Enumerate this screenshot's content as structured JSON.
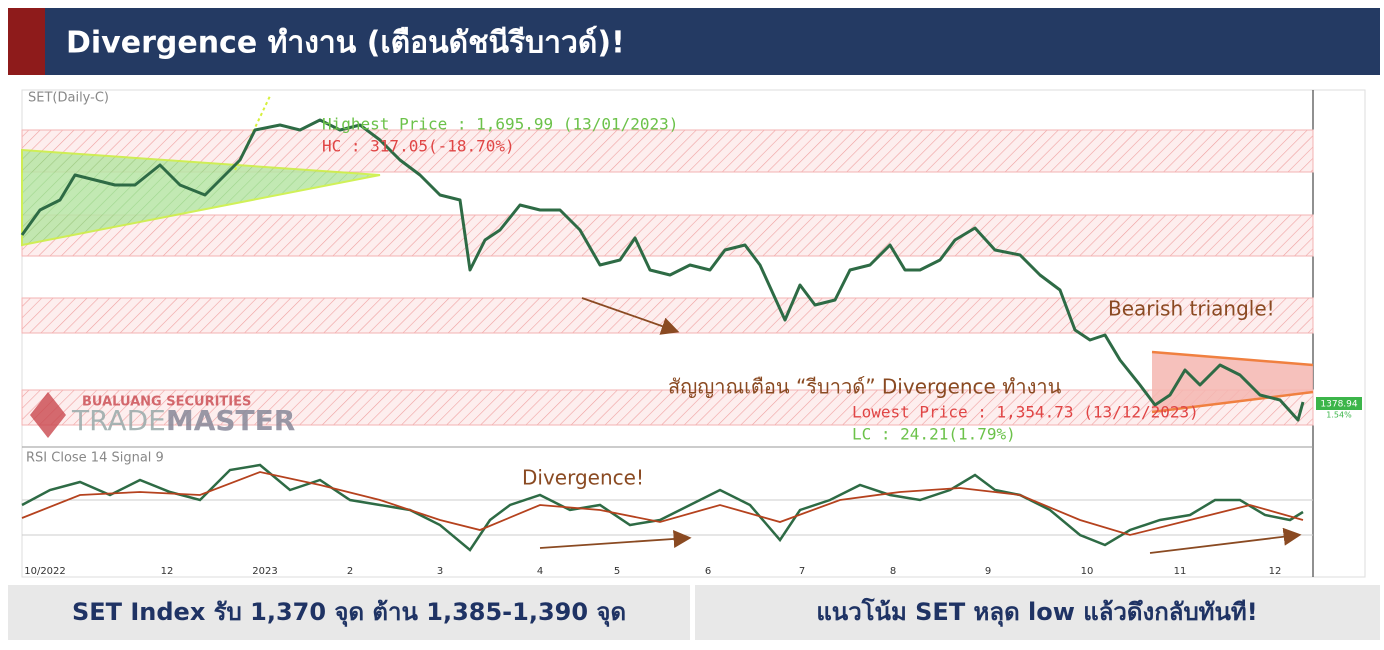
{
  "header": {
    "title": "Divergence ทำงาน (เตือนดัชนีรีบาวด์)!"
  },
  "chart": {
    "label": "SET(Daily-C)",
    "rsi_label": "RSI Close 14 Signal 9",
    "annotations": {
      "highest": "Highest Price : 1,695.99 (13/01/2023)",
      "hc": "HC : 317.05(-18.70%)",
      "bearish": "Bearish triangle!",
      "signal": "สัญญาณเตือน “รีบาวด์” Divergence ทำงาน",
      "lowest": "Lowest Price : 1,354.73 (13/12/2023)",
      "lc": "LC : 24.21(1.79%)",
      "divergence": "Divergence!"
    },
    "price_tag": "1378.94",
    "price_change": "1.54%",
    "x_labels": [
      "10/2022",
      "12",
      "2023",
      "2",
      "3",
      "4",
      "5",
      "6",
      "7",
      "8",
      "9",
      "10",
      "11",
      "12"
    ]
  },
  "logo": {
    "company": "BUALUANG SECURITIES",
    "brand_light": "TRADE",
    "brand_bold": "MASTER"
  },
  "footer": {
    "left": "SET Index รับ 1,370 จุด ต้าน 1,385-1,390 จุด",
    "right": "แนวโน้ม SET หลุด low แล้วดึงกลับทันที!"
  }
}
